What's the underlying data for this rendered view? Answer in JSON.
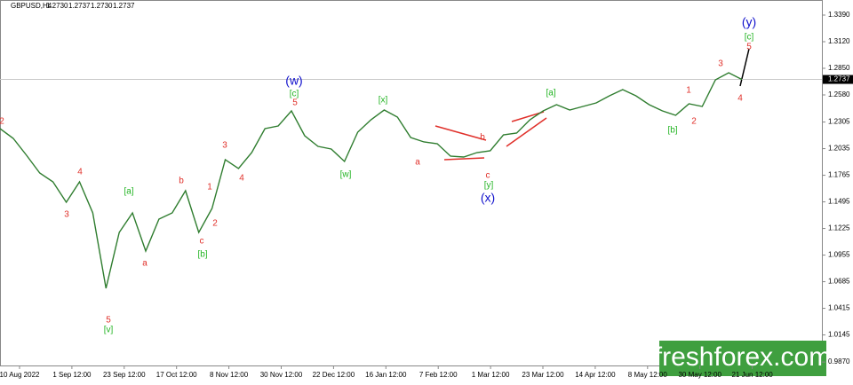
{
  "chart_data": {
    "type": "line",
    "symbol": "GBPUSD,H4",
    "header_prices": [
      "1.2730",
      "1.2737",
      "1.2730",
      "1.2737"
    ],
    "x_labels": [
      "10 Aug 2022",
      "1 Sep 12:00",
      "23 Sep 12:00",
      "17 Oct 12:00",
      "8 Nov 12:00",
      "30 Nov 12:00",
      "22 Dec 12:00",
      "16 Jan 12:00",
      "7 Feb 12:00",
      "1 Mar 12:00",
      "23 Mar 12:00",
      "14 Apr 12:00",
      "8 May 12:00",
      "30 May 12:00",
      "21 Jun 12:00"
    ],
    "values": [
      1.2238,
      1.2139,
      1.1968,
      1.1788,
      1.1698,
      1.1491,
      1.1698,
      1.1383,
      1.0618,
      1.1185,
      1.1383,
      1.0996,
      1.132,
      1.1383,
      1.1608,
      1.1185,
      1.1428,
      1.1923,
      1.1833,
      1.1995,
      1.2238,
      1.2265,
      1.2418,
      1.2166,
      1.2058,
      1.2031,
      1.1905,
      1.2202,
      1.2328,
      1.2427,
      1.2355,
      1.2148,
      1.2103,
      1.2085,
      1.1959,
      1.195,
      1.1995,
      1.2013,
      1.2175,
      1.2193,
      1.2328,
      1.2418,
      1.2481,
      1.2427,
      1.2463,
      1.2499,
      1.2571,
      1.2634,
      1.2571,
      1.2481,
      1.2418,
      1.2373,
      1.249,
      1.2463,
      1.2733,
      1.2805,
      1.2737
    ],
    "color": "#2f7d2f",
    "ylim": [
      0.9835,
      1.3543
    ],
    "yticks": [
      {
        "value": 1.339,
        "label": "1.3390"
      },
      {
        "value": 1.312,
        "label": "1.3120"
      },
      {
        "value": 1.285,
        "label": "1.2850"
      },
      {
        "value": 1.258,
        "label": "1.2580"
      },
      {
        "value": 1.2305,
        "label": "1.2305"
      },
      {
        "value": 1.2035,
        "label": "1.2035"
      },
      {
        "value": 1.1765,
        "label": "1.1765"
      },
      {
        "value": 1.1495,
        "label": "1.1495"
      },
      {
        "value": 1.1225,
        "label": "1.1225"
      },
      {
        "value": 1.0955,
        "label": "1.0955"
      },
      {
        "value": 1.0685,
        "label": "1.0685"
      },
      {
        "value": 1.0415,
        "label": "1.0415"
      },
      {
        "value": 1.0145,
        "label": "1.0145"
      },
      {
        "value": 0.987,
        "label": "0.9870"
      }
    ],
    "current_price": {
      "value": 1.2737,
      "label": "1.2737"
    },
    "annotations": [
      {
        "text": "2",
        "color": "#e0302a"
      },
      {
        "text": "4",
        "color": "#e0302a"
      },
      {
        "text": "3",
        "color": "#e0302a"
      },
      {
        "text": "5",
        "color": "#e0302a"
      },
      {
        "text": "[v]",
        "color": "#22b422"
      },
      {
        "text": "[a]",
        "color": "#22b422"
      },
      {
        "text": "a",
        "color": "#e0302a"
      },
      {
        "text": "b",
        "color": "#e0302a"
      },
      {
        "text": "1",
        "color": "#e0302a"
      },
      {
        "text": "c",
        "color": "#e0302a"
      },
      {
        "text": "[b]",
        "color": "#22b422"
      },
      {
        "text": "2",
        "color": "#e0302a"
      },
      {
        "text": "3",
        "color": "#e0302a"
      },
      {
        "text": "4",
        "color": "#e0302a"
      },
      {
        "text": "(w)",
        "color": "#1010cc"
      },
      {
        "text": "[c]",
        "color": "#22b422"
      },
      {
        "text": "5",
        "color": "#e0302a"
      },
      {
        "text": "[w]",
        "color": "#22b422"
      },
      {
        "text": "[x]",
        "color": "#22b422"
      },
      {
        "text": "a",
        "color": "#e0302a"
      },
      {
        "text": "b",
        "color": "#e0302a"
      },
      {
        "text": "c",
        "color": "#e0302a"
      },
      {
        "text": "[y]",
        "color": "#22b422"
      },
      {
        "text": "(x)",
        "color": "#1010cc"
      },
      {
        "text": "[a]",
        "color": "#22b422"
      },
      {
        "text": "1",
        "color": "#e0302a"
      },
      {
        "text": "2",
        "color": "#e0302a"
      },
      {
        "text": "[b]",
        "color": "#22b422"
      },
      {
        "text": "3",
        "color": "#e0302a"
      },
      {
        "text": "4",
        "color": "#e0302a"
      },
      {
        "text": "5",
        "color": "#e0302a"
      },
      {
        "text": "[c]",
        "color": "#22b422"
      },
      {
        "text": "(y)",
        "color": "#1010cc"
      }
    ],
    "watermark": "freshforex.com"
  }
}
